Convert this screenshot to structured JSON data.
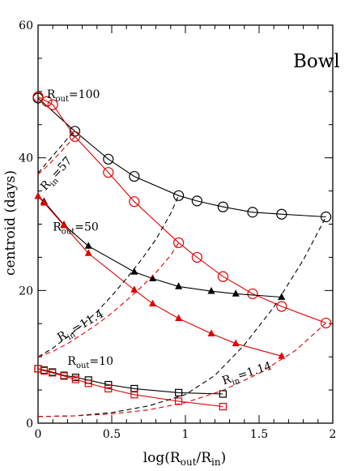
{
  "chart_data": {
    "type": "line",
    "title": "Bowl",
    "xlabel": "log(R_out/R_in)",
    "ylabel": "centroid (days)",
    "xlim": [
      0,
      2
    ],
    "ylim": [
      0,
      60
    ],
    "xticks": [
      "0",
      "0.5",
      "1",
      "1.5",
      "2"
    ],
    "yticks": [
      "0",
      "20",
      "40",
      "60"
    ],
    "grid": false,
    "legend": "none",
    "colors": {
      "black": "#000000",
      "red": "#e00000"
    },
    "series": [
      {
        "color": "black",
        "marker": "circle",
        "dash": false,
        "x": [
          0,
          0.25,
          0.477,
          0.653,
          0.954,
          1.079,
          1.255,
          1.456,
          1.653,
          1.954
        ],
        "y": [
          49.0,
          44.0,
          39.8,
          37.2,
          34.3,
          33.5,
          32.6,
          31.8,
          31.5,
          31.1
        ]
      },
      {
        "color": "red",
        "marker": "circle",
        "dash": false,
        "x": [
          0,
          0.06,
          0.1,
          0.25,
          0.477,
          0.653,
          0.954,
          1.079,
          1.255,
          1.456,
          1.653,
          1.954
        ],
        "y": [
          49.2,
          48.5,
          48.0,
          43.2,
          37.8,
          33.4,
          27.2,
          25.0,
          22.1,
          19.5,
          17.6,
          15.1
        ]
      },
      {
        "color": "black",
        "marker": "triangle",
        "dash": false,
        "x": [
          0,
          0.041,
          0.176,
          0.342,
          0.653,
          0.778,
          0.954,
          1.176,
          1.342,
          1.653
        ],
        "y": [
          34.2,
          33.4,
          29.9,
          26.7,
          22.8,
          21.8,
          20.6,
          19.9,
          19.5,
          19.0
        ]
      },
      {
        "color": "red",
        "marker": "triangle",
        "dash": false,
        "x": [
          0,
          0.041,
          0.176,
          0.342,
          0.653,
          0.778,
          0.954,
          1.176,
          1.342,
          1.653
        ],
        "y": [
          34.2,
          33.2,
          29.8,
          25.6,
          20.1,
          18.0,
          15.8,
          13.5,
          12.0,
          10.1
        ]
      },
      {
        "color": "black",
        "marker": "square",
        "dash": false,
        "x": [
          0,
          0.041,
          0.097,
          0.176,
          0.255,
          0.342,
          0.477,
          0.653,
          0.954,
          1.255
        ],
        "y": [
          8.2,
          8.0,
          7.7,
          7.2,
          6.9,
          6.5,
          5.8,
          5.2,
          4.6,
          4.4
        ]
      },
      {
        "color": "red",
        "marker": "square",
        "dash": false,
        "x": [
          0,
          0.041,
          0.097,
          0.176,
          0.255,
          0.342,
          0.477,
          0.653,
          0.954,
          1.255
        ],
        "y": [
          8.2,
          7.9,
          7.6,
          7.1,
          6.6,
          6.0,
          5.2,
          4.3,
          3.3,
          2.5
        ]
      },
      {
        "color": "black",
        "marker": "none",
        "dash": true,
        "x": [
          0,
          0.05,
          0.1,
          0.15,
          0.2,
          0.25
        ],
        "y": [
          37.7,
          39.0,
          40.3,
          41.6,
          42.9,
          44.0
        ]
      },
      {
        "color": "red",
        "marker": "none",
        "dash": true,
        "x": [
          0,
          0.05,
          0.1,
          0.15,
          0.2,
          0.25
        ],
        "y": [
          37.5,
          38.5,
          39.6,
          40.8,
          42.0,
          43.2
        ]
      },
      {
        "color": "black",
        "marker": "none",
        "dash": true,
        "x": [
          0,
          0.1,
          0.2,
          0.3,
          0.4,
          0.5,
          0.6,
          0.7,
          0.8,
          0.9,
          0.954
        ],
        "y": [
          10.0,
          11.3,
          13.0,
          14.8,
          16.8,
          19.2,
          21.8,
          24.6,
          27.7,
          31.6,
          34.3
        ]
      },
      {
        "color": "red",
        "marker": "none",
        "dash": true,
        "x": [
          0,
          0.1,
          0.2,
          0.3,
          0.4,
          0.5,
          0.6,
          0.7,
          0.8,
          0.9,
          0.954
        ],
        "y": [
          10.0,
          10.8,
          12.0,
          13.4,
          14.9,
          16.6,
          18.5,
          20.5,
          22.7,
          25.3,
          27.2
        ]
      },
      {
        "color": "black",
        "marker": "none",
        "dash": true,
        "x": [
          0,
          0.25,
          0.5,
          0.75,
          1.0,
          1.2,
          1.4,
          1.6,
          1.8,
          1.954
        ],
        "y": [
          1.0,
          1.1,
          1.6,
          2.6,
          4.3,
          7.2,
          11.8,
          17.5,
          24.6,
          31.1
        ]
      },
      {
        "color": "red",
        "marker": "none",
        "dash": true,
        "x": [
          0,
          0.25,
          0.5,
          0.75,
          1.0,
          1.25,
          1.5,
          1.75,
          1.954
        ],
        "y": [
          1.0,
          1.1,
          1.4,
          2.0,
          3.1,
          4.9,
          7.5,
          11.0,
          15.1
        ]
      }
    ],
    "annotations": [
      {
        "main": "R",
        "sub": "out",
        "rest": "=100",
        "x": 0.06,
        "y": 49.0,
        "rotate": 0
      },
      {
        "main": "R",
        "sub": "in",
        "rest": "=57",
        "x": 0.05,
        "y": 35.0,
        "rotate": -48
      },
      {
        "main": "R",
        "sub": "out",
        "rest": "=50",
        "x": 0.1,
        "y": 29.0,
        "rotate": 0
      },
      {
        "main": "R",
        "sub": "in",
        "rest": "=11.4",
        "x": 0.15,
        "y": 12.3,
        "rotate": -30
      },
      {
        "main": "R",
        "sub": "out",
        "rest": "=10",
        "x": 0.2,
        "y": 8.8,
        "rotate": 0
      },
      {
        "main": "R",
        "sub": "in",
        "rest": "=1.14",
        "x": 1.26,
        "y": 5.8,
        "rotate": -18
      }
    ]
  }
}
